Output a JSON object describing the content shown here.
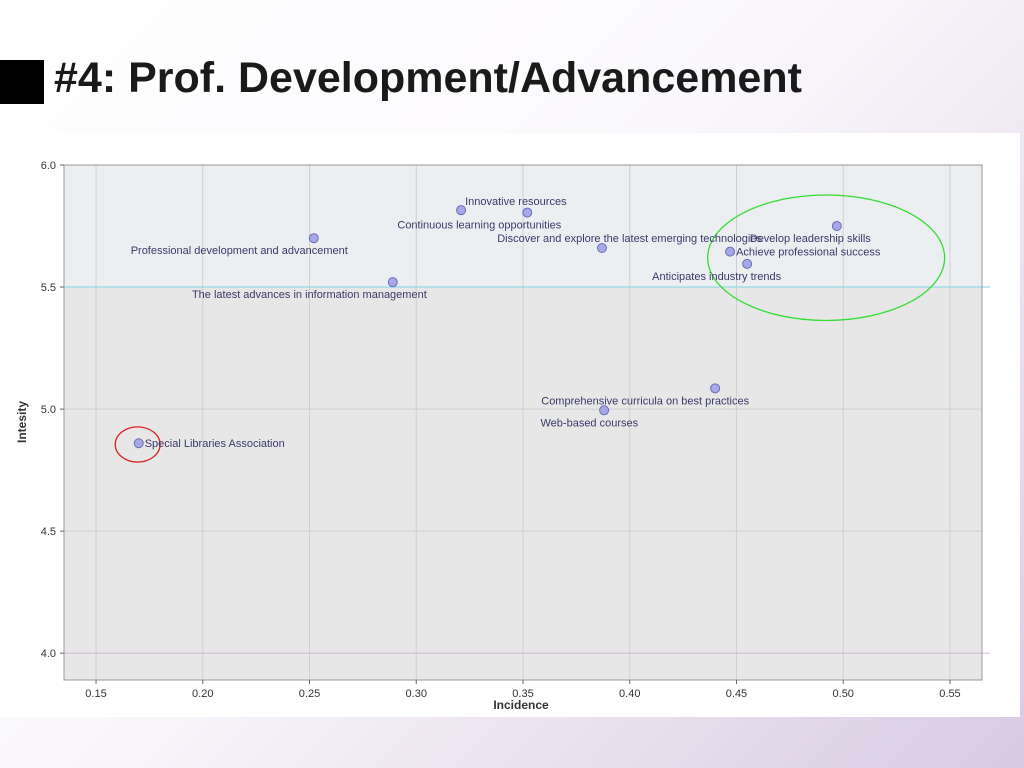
{
  "slide": {
    "title": "#4: Prof. Development/Advancement"
  },
  "chart_data": {
    "type": "scatter",
    "title": "",
    "xlabel": "Incidence",
    "ylabel": "Intesity",
    "xlim": [
      0.135,
      0.565
    ],
    "ylim": [
      3.89,
      6.0
    ],
    "x_ticks": [
      "0.15",
      "0.20",
      "0.25",
      "0.30",
      "0.35",
      "0.40",
      "0.45",
      "0.50",
      "0.55"
    ],
    "x_tick_values": [
      0.15,
      0.2,
      0.25,
      0.3,
      0.35,
      0.4,
      0.45,
      0.5,
      0.55
    ],
    "y_ticks": [
      "6.0",
      "5.5",
      "5.0",
      "4.5",
      "4.0"
    ],
    "y_tick_values": [
      6.0,
      5.5,
      5.0,
      4.5,
      4.0
    ],
    "grid": true,
    "reference_line_y": 5.5,
    "points": [
      {
        "label": "Innovative resources",
        "x": 0.321,
        "y": 5.815,
        "label_pos": "above-right"
      },
      {
        "label": "Continuous learning opportunities",
        "x": 0.352,
        "y": 5.805,
        "label_pos": "below-left"
      },
      {
        "label": "Professional development and advancement",
        "x": 0.252,
        "y": 5.7,
        "label_pos": "below-left"
      },
      {
        "label": "Discover and explore the latest emerging technologies",
        "x": 0.387,
        "y": 5.66,
        "label_pos": "above-left"
      },
      {
        "label": "The latest advances in information management",
        "x": 0.289,
        "y": 5.52,
        "label_pos": "below-left"
      },
      {
        "label": "Develop leadership skills",
        "x": 0.497,
        "y": 5.75,
        "label_pos": "below-left"
      },
      {
        "label": "Achieve professional success",
        "x": 0.447,
        "y": 5.645,
        "label_pos": "right"
      },
      {
        "label": "Anticipates industry trends",
        "x": 0.455,
        "y": 5.595,
        "label_pos": "below-left"
      },
      {
        "label": "Comprehensive curricula on best practices",
        "x": 0.44,
        "y": 5.085,
        "label_pos": "below-left"
      },
      {
        "label": "Web-based courses",
        "x": 0.388,
        "y": 4.995,
        "label_pos": "below-left"
      },
      {
        "label": "Special Libraries Association",
        "x": 0.17,
        "y": 4.86,
        "label_pos": "right"
      }
    ],
    "highlights": [
      {
        "shape": "ellipse",
        "color": "#33dd33",
        "cx": 0.492,
        "cy": 5.62,
        "rx": 0.0555,
        "ry": 0.257
      },
      {
        "shape": "circle",
        "color": "#dd2222",
        "cx": 0.1695,
        "cy": 4.855,
        "rx": 0.0105,
        "ry": 0.072
      }
    ],
    "colors": {
      "point_fill": "#a7a9e6",
      "point_stroke": "#6a6cbd",
      "plot_bg_upper": "#eceff1",
      "plot_bg_lower": "#e7e7e7",
      "reference_line": "#7fd6e6",
      "grid": "#cfcfcf"
    }
  }
}
